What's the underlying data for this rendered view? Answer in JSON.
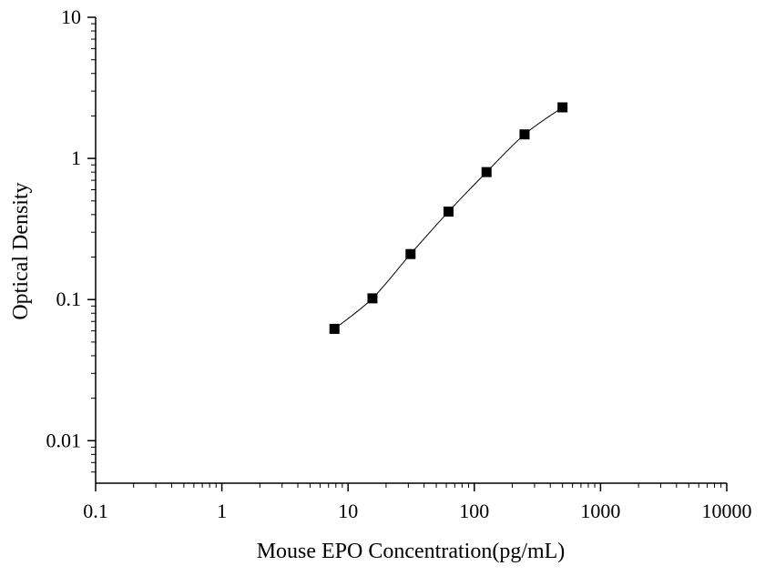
{
  "chart_data": {
    "type": "scatter",
    "xlabel": "Mouse EPO Concentration(pg/mL)",
    "ylabel": "Optical Density",
    "x_scale": "log",
    "y_scale": "log",
    "xlim": [
      0.1,
      10000
    ],
    "ylim": [
      0.005,
      10
    ],
    "x_ticks": [
      "0.1",
      "1",
      "10",
      "100",
      "1000",
      "10000"
    ],
    "y_ticks": [
      "0.01",
      "0.1",
      "1",
      "10"
    ],
    "grid": false,
    "legend": "none",
    "series": [
      {
        "x": [
          7.8,
          15.6,
          31.25,
          62.5,
          125,
          250,
          500
        ],
        "y": [
          0.062,
          0.102,
          0.21,
          0.42,
          0.8,
          1.48,
          2.3
        ],
        "marker": "square",
        "line": "smooth",
        "color": "#000000"
      }
    ]
  }
}
